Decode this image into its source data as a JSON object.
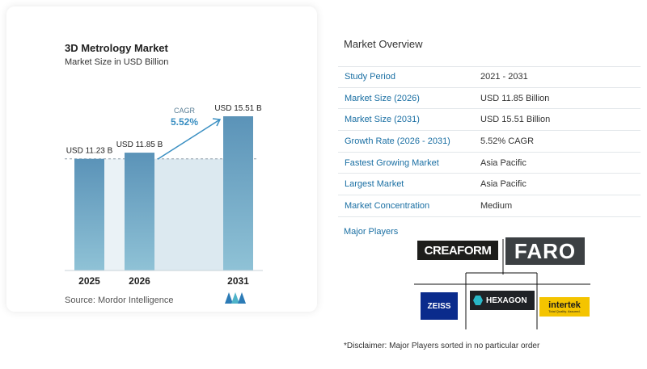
{
  "chart_data": {
    "type": "bar",
    "title": "3D Metrology Market",
    "subtitle": "Market Size in USD Billion",
    "categories": [
      "2025",
      "2026",
      "2031"
    ],
    "values": [
      11.23,
      11.85,
      15.51
    ],
    "value_labels": [
      "USD 11.23 B",
      "USD 11.85 B",
      "USD 15.51 B"
    ],
    "cagr_label": "CAGR",
    "cagr_value": "5.52%",
    "bar_color": "#5b93b8",
    "bar_color_light": "#8fc2d6",
    "band_color": "#dce9f0"
  },
  "source": "Source:  Mordor Intelligence",
  "overview": {
    "title": "Market Overview",
    "rows": [
      {
        "label": "Study Period",
        "value": "2021 - 2031"
      },
      {
        "label": "Market Size (2026)",
        "value": "USD 11.85 Billion"
      },
      {
        "label": "Market Size (2031)",
        "value": "USD 15.51 Billion"
      },
      {
        "label": "Growth Rate (2026 - 2031)",
        "value": "5.52% CAGR"
      },
      {
        "label": "Fastest Growing Market",
        "value": "Asia Pacific"
      },
      {
        "label": "Largest Market",
        "value": "Asia Pacific"
      },
      {
        "label": "Market Concentration",
        "value": "Medium"
      }
    ]
  },
  "major_players_label": "Major Players",
  "players": [
    "CREAFORM",
    "FARO",
    "ZEISS",
    "HEXAGON",
    "intertek"
  ],
  "intertek_tagline": "Total Quality. Assured.",
  "disclaimer": "*Disclaimer: Major Players sorted in no particular order",
  "colors": {
    "accent": "#1a6fa3"
  }
}
